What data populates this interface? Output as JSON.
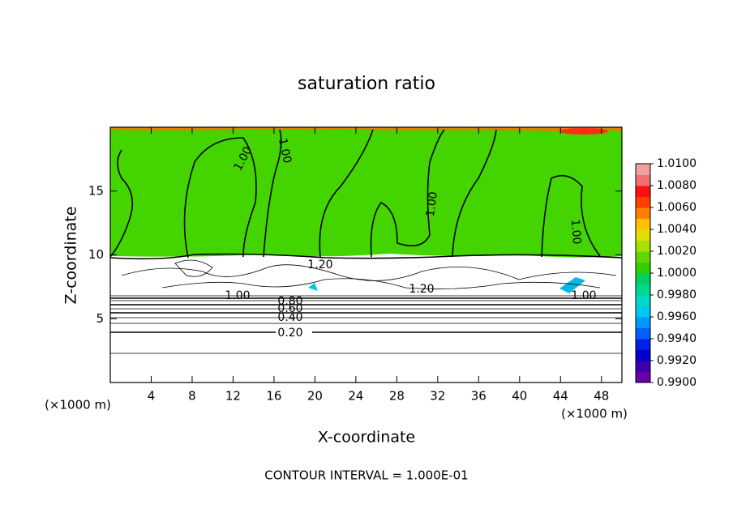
{
  "chart_data": {
    "type": "contour",
    "title": "saturation ratio",
    "x_label": "X-coordinate",
    "y_label": "Z-coordinate",
    "x_unit": "(×1000 m)",
    "y_unit": "(×1000 m)",
    "footer": "CONTOUR INTERVAL = 1.000E-01",
    "xlim": [
      0,
      50
    ],
    "xticks": [
      4,
      8,
      12,
      16,
      20,
      24,
      28,
      32,
      36,
      40,
      44,
      48
    ],
    "ylim": [
      0,
      20
    ],
    "yticks": [
      5,
      10,
      15
    ],
    "colorbar": {
      "lim": [
        0.99,
        1.01
      ],
      "ticks": [
        {
          "value": 0.99,
          "label": "0.9900"
        },
        {
          "value": 0.992,
          "label": "0.9920"
        },
        {
          "value": 0.994,
          "label": "0.9940"
        },
        {
          "value": 0.996,
          "label": "0.9960"
        },
        {
          "value": 0.998,
          "label": "0.9980"
        },
        {
          "value": 1.0,
          "label": "1.0000"
        },
        {
          "value": 1.002,
          "label": "1.0020"
        },
        {
          "value": 1.004,
          "label": "1.0040"
        },
        {
          "value": 1.006,
          "label": "1.0060"
        },
        {
          "value": 1.008,
          "label": "1.0080"
        },
        {
          "value": 1.01,
          "label": "1.0100"
        }
      ],
      "colors": [
        "#6a00a8",
        "#3a00b0",
        "#0000c8",
        "#0020e8",
        "#0060ff",
        "#0098ff",
        "#00c8f0",
        "#00d8c8",
        "#00d890",
        "#00d060",
        "#30d000",
        "#60d800",
        "#a8e000",
        "#e0e000",
        "#ffc000",
        "#ff8000",
        "#ff4000",
        "#ff1010",
        "#f07070",
        "#f0a0a0"
      ]
    },
    "contour_labels": [
      "1.00",
      "1.00",
      "1.00",
      "1.00",
      "1.20",
      "1.20",
      "1.00",
      "0.80",
      "0.60",
      "0.40",
      "0.20",
      "1.00"
    ]
  }
}
